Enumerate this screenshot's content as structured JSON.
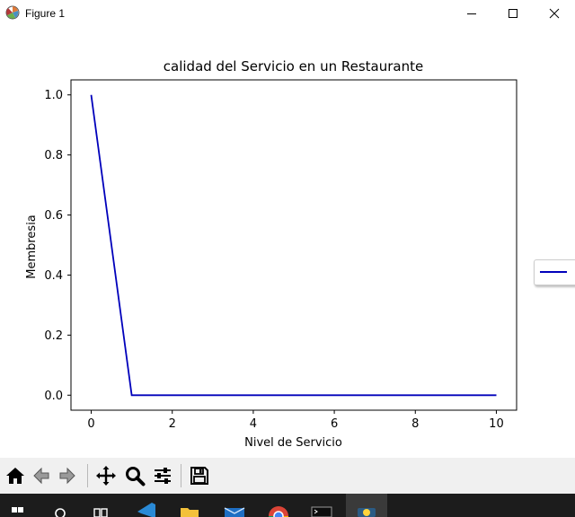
{
  "window": {
    "title": "Figure 1",
    "controls": [
      "minimize-icon",
      "maximize-icon",
      "close-icon"
    ]
  },
  "chart_data": {
    "type": "line",
    "title": "calidad del Servicio en un Restaurante",
    "xlabel": "Nivel de Servicio",
    "ylabel": "Membresia",
    "xlim": [
      -0.5,
      10.5
    ],
    "ylim": [
      -0.05,
      1.05
    ],
    "xticks": [
      0,
      2,
      4,
      6,
      8,
      10
    ],
    "xtick_labels": [
      "0",
      "2",
      "4",
      "6",
      "8",
      "10"
    ],
    "yticks": [
      0.0,
      0.2,
      0.4,
      0.6,
      0.8,
      1.0
    ],
    "ytick_labels": [
      "0.0",
      "0.2",
      "0.4",
      "0.6",
      "0.8",
      "1.0"
    ],
    "grid": false,
    "legend": "right, outside plot",
    "series": [
      {
        "color": "#0000bb",
        "x": [
          0,
          1,
          10
        ],
        "y": [
          1.0,
          0.0,
          0.0
        ]
      }
    ]
  },
  "toolbar": {
    "buttons": [
      "home-icon",
      "back-arrow-icon",
      "forward-arrow-icon",
      "pan-icon",
      "zoom-icon",
      "configure-subplots-icon",
      "save-icon"
    ]
  },
  "taskbar": {
    "items": [
      "windows-start-icon",
      "search-icon",
      "task-view-icon",
      "vscode-icon",
      "file-explorer-icon",
      "mail-icon",
      "chrome-icon",
      "terminal-icon",
      "python-icon"
    ]
  }
}
